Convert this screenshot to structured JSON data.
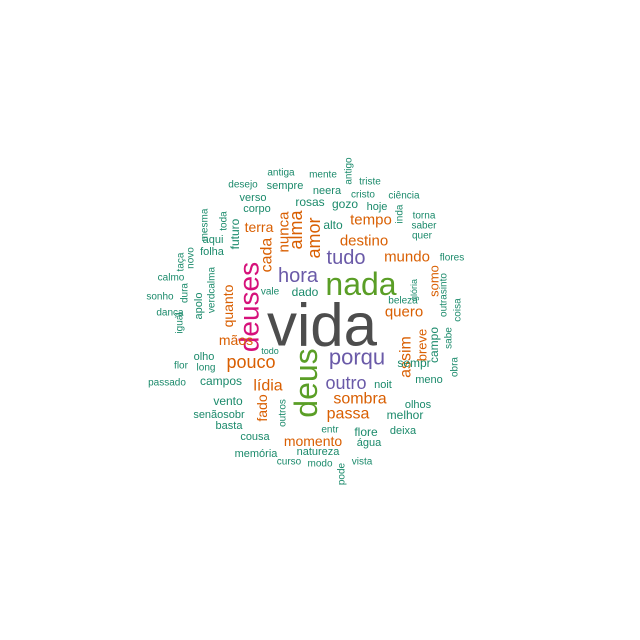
{
  "colors": {
    "gray": "#4d4d4d",
    "green": "#5a9e26",
    "purple": "#6a5aa8",
    "pink": "#d6117a",
    "orange": "#d95f02",
    "teal": "#1b8a6b"
  },
  "words": [
    {
      "text": "vida",
      "color": "gray"
    },
    {
      "text": "nada",
      "color": "green"
    },
    {
      "text": "deus",
      "color": "green"
    },
    {
      "text": "deuses",
      "color": "pink"
    },
    {
      "text": "porqu",
      "color": "purple"
    },
    {
      "text": "hora",
      "color": "purple"
    },
    {
      "text": "tudo",
      "color": "purple"
    },
    {
      "text": "outro",
      "color": "purple"
    },
    {
      "text": "pouco",
      "color": "orange"
    },
    {
      "text": "lídia",
      "color": "orange"
    },
    {
      "text": "alma",
      "color": "orange"
    },
    {
      "text": "amor",
      "color": "orange"
    },
    {
      "text": "destino",
      "color": "orange"
    },
    {
      "text": "cada",
      "color": "orange"
    },
    {
      "text": "nunca",
      "color": "orange"
    },
    {
      "text": "terra",
      "color": "orange"
    },
    {
      "text": "tempo",
      "color": "orange"
    },
    {
      "text": "mundo",
      "color": "orange"
    },
    {
      "text": "quero",
      "color": "orange"
    },
    {
      "text": "assim",
      "color": "orange"
    },
    {
      "text": "breve",
      "color": "orange"
    },
    {
      "text": "somo",
      "color": "orange"
    },
    {
      "text": "sombra",
      "color": "orange"
    },
    {
      "text": "passa",
      "color": "orange"
    },
    {
      "text": "momento",
      "color": "orange"
    },
    {
      "text": "fado",
      "color": "orange"
    },
    {
      "text": "mãos",
      "color": "orange"
    },
    {
      "text": "quanto",
      "color": "orange"
    },
    {
      "text": "sempr",
      "color": "teal"
    },
    {
      "text": "campo",
      "color": "teal"
    },
    {
      "text": "meno",
      "color": "teal"
    },
    {
      "text": "melhor",
      "color": "teal"
    },
    {
      "text": "olhos",
      "color": "teal"
    },
    {
      "text": "noit",
      "color": "teal"
    },
    {
      "text": "flore",
      "color": "teal"
    },
    {
      "text": "deixa",
      "color": "teal"
    },
    {
      "text": "água",
      "color": "teal"
    },
    {
      "text": "entr",
      "color": "teal"
    },
    {
      "text": "natureza",
      "color": "teal"
    },
    {
      "text": "vista",
      "color": "teal"
    },
    {
      "text": "modo",
      "color": "teal"
    },
    {
      "text": "curso",
      "color": "teal"
    },
    {
      "text": "memória",
      "color": "teal"
    },
    {
      "text": "pode",
      "color": "teal"
    },
    {
      "text": "cousa",
      "color": "teal"
    },
    {
      "text": "basta",
      "color": "teal"
    },
    {
      "text": "senãosobr",
      "color": "teal"
    },
    {
      "text": "vento",
      "color": "teal"
    },
    {
      "text": "outros",
      "color": "teal"
    },
    {
      "text": "campos",
      "color": "teal"
    },
    {
      "text": "passado",
      "color": "teal"
    },
    {
      "text": "long",
      "color": "teal"
    },
    {
      "text": "olho",
      "color": "teal"
    },
    {
      "text": "flor",
      "color": "teal"
    },
    {
      "text": "todo",
      "color": "teal"
    },
    {
      "text": "igual",
      "color": "teal"
    },
    {
      "text": "dança",
      "color": "teal"
    },
    {
      "text": "sonho",
      "color": "teal"
    },
    {
      "text": "calmo",
      "color": "teal"
    },
    {
      "text": "dura",
      "color": "teal"
    },
    {
      "text": "verdcalma",
      "color": "teal"
    },
    {
      "text": "apolo",
      "color": "teal"
    },
    {
      "text": "taça",
      "color": "teal"
    },
    {
      "text": "novo",
      "color": "teal"
    },
    {
      "text": "folha",
      "color": "teal"
    },
    {
      "text": "aqui",
      "color": "teal"
    },
    {
      "text": "mesma",
      "color": "teal"
    },
    {
      "text": "toda",
      "color": "teal"
    },
    {
      "text": "futuro",
      "color": "teal"
    },
    {
      "text": "verso",
      "color": "teal"
    },
    {
      "text": "corpo",
      "color": "teal"
    },
    {
      "text": "desejo",
      "color": "teal"
    },
    {
      "text": "sempre",
      "color": "teal"
    },
    {
      "text": "antiga",
      "color": "teal"
    },
    {
      "text": "mente",
      "color": "teal"
    },
    {
      "text": "neera",
      "color": "teal"
    },
    {
      "text": "antigo",
      "color": "teal"
    },
    {
      "text": "triste",
      "color": "teal"
    },
    {
      "text": "cristo",
      "color": "teal"
    },
    {
      "text": "rosas",
      "color": "teal"
    },
    {
      "text": "gozo",
      "color": "teal"
    },
    {
      "text": "hoje",
      "color": "teal"
    },
    {
      "text": "ciência",
      "color": "teal"
    },
    {
      "text": "inda",
      "color": "teal"
    },
    {
      "text": "torna",
      "color": "teal"
    },
    {
      "text": "saber",
      "color": "teal"
    },
    {
      "text": "quer",
      "color": "teal"
    },
    {
      "text": "alto",
      "color": "teal"
    },
    {
      "text": "flores",
      "color": "teal"
    },
    {
      "text": "glória",
      "color": "teal"
    },
    {
      "text": "beleza",
      "color": "teal"
    },
    {
      "text": "outrasinto",
      "color": "teal"
    },
    {
      "text": "coisa",
      "color": "teal"
    },
    {
      "text": "sabe",
      "color": "teal"
    },
    {
      "text": "obra",
      "color": "teal"
    },
    {
      "text": "dado",
      "color": "teal"
    },
    {
      "text": "vale",
      "color": "teal"
    }
  ]
}
